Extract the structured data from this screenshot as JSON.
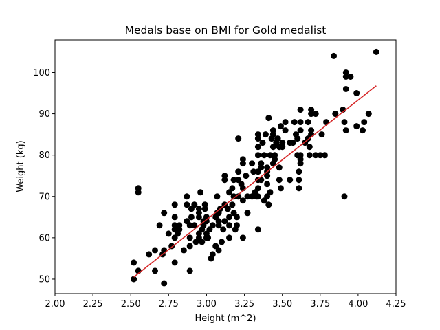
{
  "chart_data": {
    "type": "scatter",
    "title": "Medals base on BMI for Gold medalist",
    "xlabel": "Height (m^2)",
    "ylabel": "Weight (kg)",
    "xlim": [
      2.0,
      4.25
    ],
    "ylim": [
      46.5,
      107.9
    ],
    "xticks": [
      "2.00",
      "2.25",
      "2.50",
      "2.75",
      "3.00",
      "3.25",
      "3.50",
      "3.75",
      "4.00",
      "4.25"
    ],
    "yticks": [
      "50",
      "60",
      "70",
      "80",
      "90",
      "100"
    ],
    "grid": false,
    "point_color": "#000000",
    "line_color": "#d62728",
    "points": [
      [
        2.52,
        50
      ],
      [
        2.52,
        54
      ],
      [
        2.55,
        52
      ],
      [
        2.55,
        71
      ],
      [
        2.55,
        72
      ],
      [
        2.62,
        56
      ],
      [
        2.66,
        52
      ],
      [
        2.66,
        57
      ],
      [
        2.69,
        63
      ],
      [
        2.71,
        56
      ],
      [
        2.72,
        57
      ],
      [
        2.72,
        49
      ],
      [
        2.72,
        66
      ],
      [
        2.75,
        61
      ],
      [
        2.77,
        58
      ],
      [
        2.79,
        54
      ],
      [
        2.79,
        60
      ],
      [
        2.79,
        62
      ],
      [
        2.79,
        63
      ],
      [
        2.79,
        65
      ],
      [
        2.79,
        68
      ],
      [
        2.81,
        61
      ],
      [
        2.82,
        62
      ],
      [
        2.82,
        63
      ],
      [
        2.85,
        57
      ],
      [
        2.87,
        64
      ],
      [
        2.87,
        68
      ],
      [
        2.87,
        70
      ],
      [
        2.89,
        60
      ],
      [
        2.89,
        52
      ],
      [
        2.89,
        58
      ],
      [
        2.89,
        63
      ],
      [
        2.9,
        65
      ],
      [
        2.9,
        67
      ],
      [
        2.92,
        63
      ],
      [
        2.92,
        68
      ],
      [
        2.93,
        59
      ],
      [
        2.95,
        60
      ],
      [
        2.95,
        61
      ],
      [
        2.95,
        65
      ],
      [
        2.95,
        66
      ],
      [
        2.95,
        67
      ],
      [
        2.96,
        71
      ],
      [
        2.97,
        59
      ],
      [
        2.97,
        62
      ],
      [
        2.98,
        63
      ],
      [
        2.98,
        64
      ],
      [
        2.99,
        68
      ],
      [
        2.99,
        67
      ],
      [
        3.0,
        60
      ],
      [
        3.0,
        61
      ],
      [
        3.0,
        64
      ],
      [
        3.0,
        65
      ],
      [
        3.01,
        60
      ],
      [
        3.02,
        62
      ],
      [
        3.03,
        55
      ],
      [
        3.04,
        56
      ],
      [
        3.04,
        63
      ],
      [
        3.06,
        58
      ],
      [
        3.06,
        65
      ],
      [
        3.07,
        66
      ],
      [
        3.07,
        70
      ],
      [
        3.08,
        57
      ],
      [
        3.08,
        63
      ],
      [
        3.08,
        64
      ],
      [
        3.08,
        66
      ],
      [
        3.09,
        67
      ],
      [
        3.1,
        59
      ],
      [
        3.11,
        62
      ],
      [
        3.12,
        64
      ],
      [
        3.12,
        68
      ],
      [
        3.12,
        74
      ],
      [
        3.12,
        75
      ],
      [
        3.14,
        67
      ],
      [
        3.15,
        60
      ],
      [
        3.15,
        63
      ],
      [
        3.15,
        65
      ],
      [
        3.15,
        71
      ],
      [
        3.17,
        68
      ],
      [
        3.17,
        72
      ],
      [
        3.18,
        74
      ],
      [
        3.18,
        66
      ],
      [
        3.18,
        70
      ],
      [
        3.19,
        62
      ],
      [
        3.2,
        63
      ],
      [
        3.2,
        65
      ],
      [
        3.21,
        70
      ],
      [
        3.21,
        74
      ],
      [
        3.21,
        76
      ],
      [
        3.21,
        84
      ],
      [
        3.23,
        73
      ],
      [
        3.24,
        60
      ],
      [
        3.24,
        69
      ],
      [
        3.24,
        72
      ],
      [
        3.24,
        78
      ],
      [
        3.24,
        79
      ],
      [
        3.26,
        75
      ],
      [
        3.27,
        66
      ],
      [
        3.27,
        70
      ],
      [
        3.3,
        70
      ],
      [
        3.3,
        78
      ],
      [
        3.31,
        76
      ],
      [
        3.32,
        71
      ],
      [
        3.33,
        70
      ],
      [
        3.34,
        62
      ],
      [
        3.34,
        70
      ],
      [
        3.34,
        72
      ],
      [
        3.34,
        74
      ],
      [
        3.34,
        76
      ],
      [
        3.34,
        80
      ],
      [
        3.34,
        82
      ],
      [
        3.34,
        84
      ],
      [
        3.34,
        85
      ],
      [
        3.36,
        74
      ],
      [
        3.36,
        77
      ],
      [
        3.36,
        78
      ],
      [
        3.37,
        83
      ],
      [
        3.38,
        69
      ],
      [
        3.38,
        80
      ],
      [
        3.39,
        85
      ],
      [
        3.4,
        70
      ],
      [
        3.4,
        73
      ],
      [
        3.4,
        75
      ],
      [
        3.4,
        76
      ],
      [
        3.4,
        77
      ],
      [
        3.41,
        89
      ],
      [
        3.41,
        68
      ],
      [
        3.42,
        71
      ],
      [
        3.42,
        80
      ],
      [
        3.43,
        84
      ],
      [
        3.44,
        78
      ],
      [
        3.44,
        82
      ],
      [
        3.44,
        85
      ],
      [
        3.44,
        86
      ],
      [
        3.45,
        79
      ],
      [
        3.45,
        80
      ],
      [
        3.46,
        83
      ],
      [
        3.47,
        84
      ],
      [
        3.48,
        74
      ],
      [
        3.48,
        77
      ],
      [
        3.48,
        82
      ],
      [
        3.49,
        72
      ],
      [
        3.49,
        87
      ],
      [
        3.5,
        82
      ],
      [
        3.5,
        83
      ],
      [
        3.52,
        86
      ],
      [
        3.52,
        88
      ],
      [
        3.55,
        74
      ],
      [
        3.55,
        83
      ],
      [
        3.57,
        83
      ],
      [
        3.58,
        88
      ],
      [
        3.59,
        85
      ],
      [
        3.6,
        80
      ],
      [
        3.6,
        84
      ],
      [
        3.61,
        74
      ],
      [
        3.61,
        76
      ],
      [
        3.61,
        72
      ],
      [
        3.62,
        78
      ],
      [
        3.62,
        79
      ],
      [
        3.62,
        80
      ],
      [
        3.62,
        86
      ],
      [
        3.62,
        88
      ],
      [
        3.62,
        91
      ],
      [
        3.65,
        83
      ],
      [
        3.67,
        84
      ],
      [
        3.67,
        88
      ],
      [
        3.68,
        80
      ],
      [
        3.68,
        82
      ],
      [
        3.69,
        85
      ],
      [
        3.69,
        86
      ],
      [
        3.69,
        90
      ],
      [
        3.69,
        91
      ],
      [
        3.72,
        80
      ],
      [
        3.72,
        90
      ],
      [
        3.75,
        80
      ],
      [
        3.76,
        85
      ],
      [
        3.78,
        80
      ],
      [
        3.79,
        88
      ],
      [
        3.84,
        104
      ],
      [
        3.85,
        90
      ],
      [
        3.9,
        91
      ],
      [
        3.91,
        70
      ],
      [
        3.91,
        88
      ],
      [
        3.92,
        96
      ],
      [
        3.92,
        86
      ],
      [
        3.92,
        99
      ],
      [
        3.92,
        100
      ],
      [
        3.95,
        99
      ],
      [
        3.99,
        87
      ],
      [
        3.99,
        95
      ],
      [
        4.03,
        86
      ],
      [
        4.04,
        88
      ],
      [
        4.07,
        90
      ],
      [
        4.12,
        105
      ]
    ],
    "fit_line": {
      "x": [
        2.52,
        4.12
      ],
      "y": [
        50.5,
        96.8
      ]
    }
  }
}
